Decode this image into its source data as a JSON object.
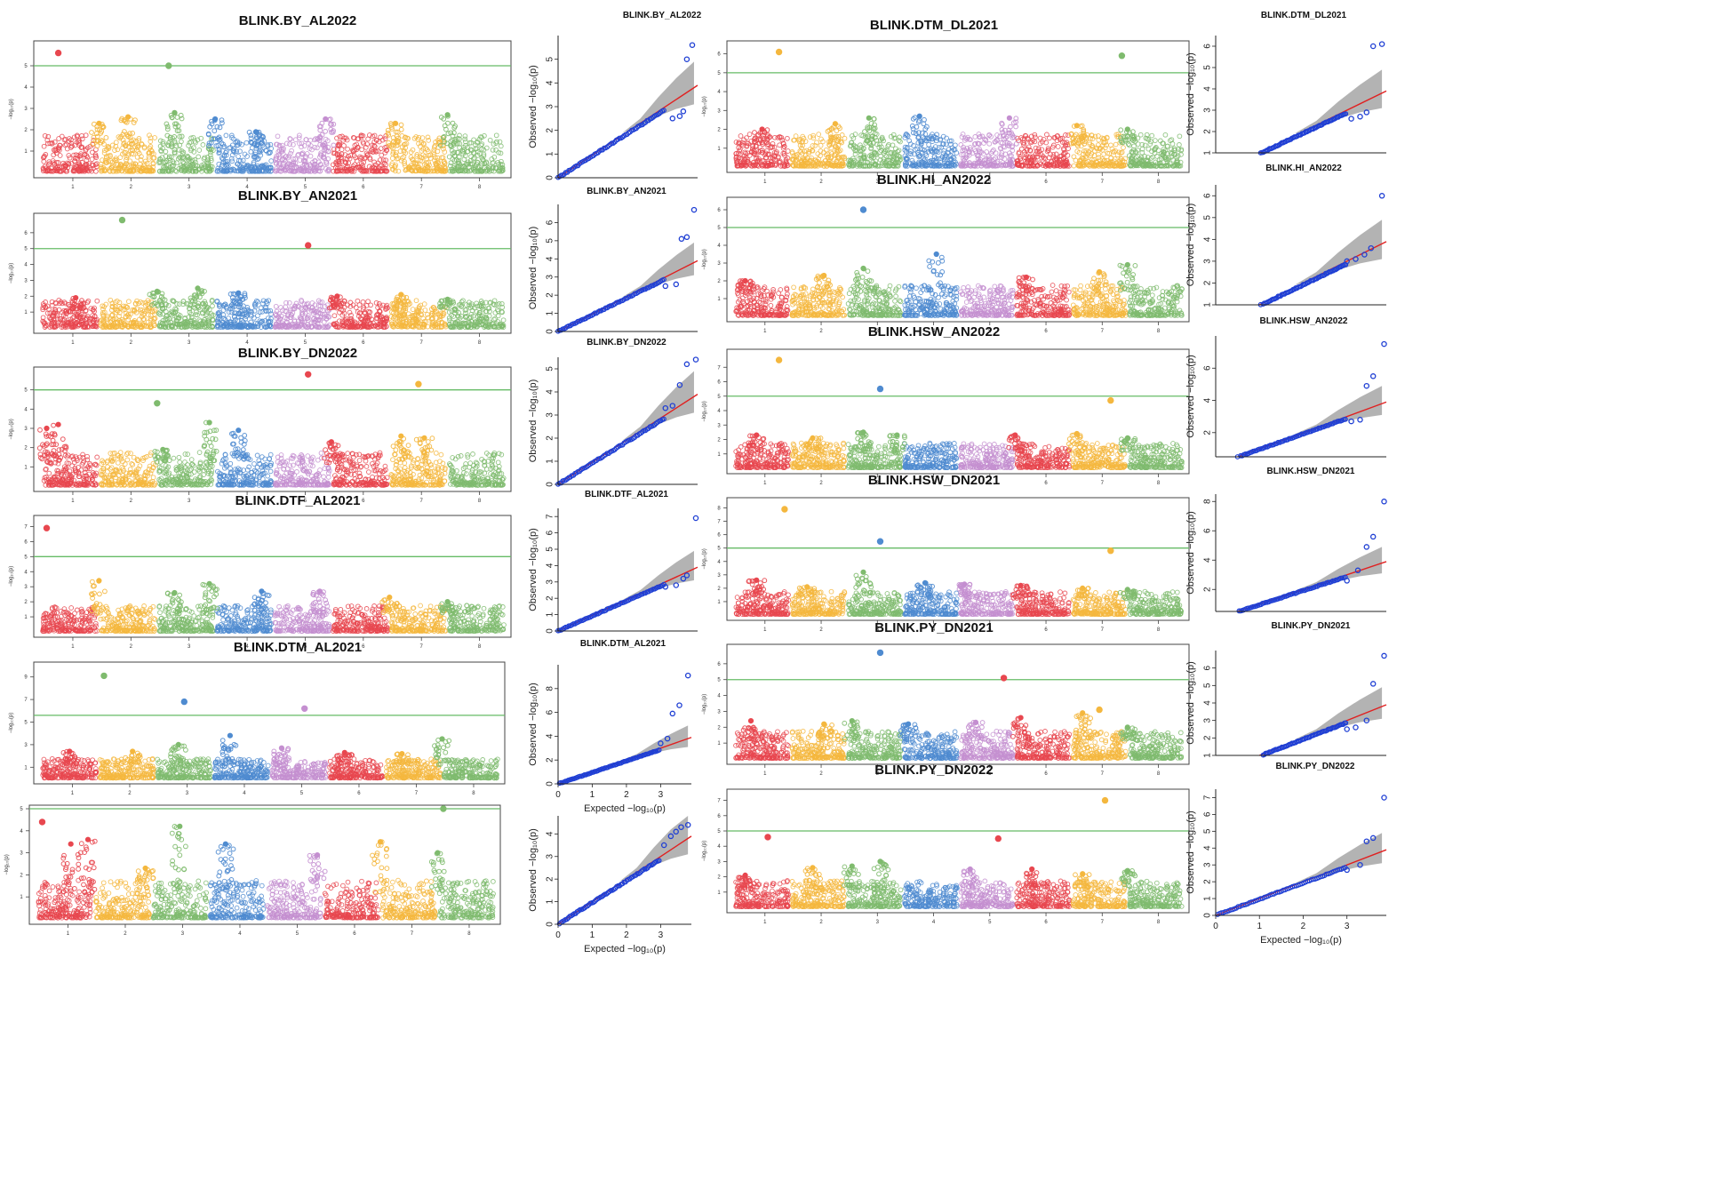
{
  "figure": {
    "chromosome_palette": [
      "#e8474f",
      "#f4b73e",
      "#7fbb6e",
      "#4f8bd0",
      "#c48fd0",
      "#e8474f",
      "#f4b73e",
      "#7fbb6e"
    ],
    "threshold_color": "#66bb66",
    "qq_point_color": "#1f3fd4",
    "qq_line_color": "#e02020",
    "qq_band_color": "#9a9a9a",
    "qq_axis": {
      "ylabel": "Observed  −log₁₀(p)",
      "xlabel": "Expected  −log₁₀(p)",
      "xticks": [
        "0",
        "1",
        "2",
        "3"
      ]
    },
    "manhattan_axis": {
      "ylabel": "−log₁₀(p)",
      "xticks": [
        "1",
        "2",
        "3",
        "4",
        "5",
        "6",
        "7",
        "8"
      ]
    }
  },
  "chart_data": [
    {
      "type": "scatter",
      "kind": "manhattan",
      "title": "BLINK.BY_AL2022",
      "ylim": [
        0,
        6
      ],
      "threshold": 5,
      "yticks": [
        "1",
        "2",
        "3",
        "4",
        "5"
      ],
      "peaks": [
        [
          2,
          2.3
        ],
        [
          2.5,
          2.6
        ],
        [
          3.3,
          2.8
        ],
        [
          4.0,
          2.5
        ],
        [
          4.7,
          1.9
        ],
        [
          5.9,
          2.5
        ],
        [
          7.1,
          2.3
        ],
        [
          8.0,
          2.7
        ]
      ],
      "significant": [
        [
          1.3,
          5.6,
          1
        ],
        [
          3.2,
          5.0,
          3
        ]
      ]
    },
    {
      "type": "scatter",
      "kind": "qq",
      "title": "BLINK.BY_AL2022",
      "ylim": [
        0,
        6
      ],
      "xlim": [
        0,
        3.9
      ],
      "yticks": [
        "0",
        "1",
        "2",
        "3",
        "4",
        "5"
      ],
      "show_xlabel": false,
      "tail": [
        [
          3.2,
          2.5
        ],
        [
          3.4,
          2.6
        ],
        [
          3.5,
          2.8
        ],
        [
          3.6,
          5.0
        ],
        [
          3.75,
          5.6
        ]
      ]
    },
    {
      "type": "scatter",
      "kind": "manhattan",
      "title": "BLINK.DTM_DL2021",
      "ylim": [
        0,
        6.5
      ],
      "threshold": 5,
      "yticks": [
        "1",
        "2",
        "3",
        "4",
        "5",
        "6"
      ],
      "peaks": [
        [
          1.5,
          2.0
        ],
        [
          2.8,
          2.3
        ],
        [
          3.4,
          2.6
        ],
        [
          4.3,
          2.7
        ],
        [
          5.9,
          2.6
        ],
        [
          7.1,
          2.2
        ],
        [
          8.0,
          2.0
        ]
      ],
      "significant": [
        [
          1.8,
          6.1,
          2
        ],
        [
          7.9,
          5.9,
          8
        ]
      ]
    },
    {
      "type": "scatter",
      "kind": "qq",
      "title": "BLINK.DTM_DL2021",
      "ylim": [
        1,
        6.5
      ],
      "xlim": [
        0,
        3.9
      ],
      "yticks": [
        "1",
        "2",
        "3",
        "4",
        "5",
        "6"
      ],
      "show_xlabel": false,
      "tail": [
        [
          3.1,
          2.6
        ],
        [
          3.3,
          2.7
        ],
        [
          3.45,
          2.9
        ],
        [
          3.6,
          6.0
        ],
        [
          3.8,
          6.1
        ]
      ]
    },
    {
      "type": "scatter",
      "kind": "manhattan",
      "title": "BLINK.BY_AN2021",
      "ylim": [
        0,
        7
      ],
      "threshold": 5,
      "yticks": [
        "1",
        "2",
        "3",
        "4",
        "5",
        "6"
      ],
      "peaks": [
        [
          1.6,
          1.9
        ],
        [
          3.0,
          2.3
        ],
        [
          3.7,
          2.5
        ],
        [
          4.4,
          2.2
        ],
        [
          6.1,
          2.0
        ],
        [
          7.2,
          2.1
        ],
        [
          8.0,
          1.8
        ]
      ],
      "significant": [
        [
          2.4,
          6.8,
          3
        ],
        [
          5.6,
          5.2,
          6
        ]
      ]
    },
    {
      "type": "scatter",
      "kind": "qq",
      "title": "BLINK.BY_AN2021",
      "ylim": [
        0,
        7
      ],
      "xlim": [
        0,
        3.9
      ],
      "yticks": [
        "0",
        "1",
        "2",
        "3",
        "4",
        "5",
        "6"
      ],
      "show_xlabel": false,
      "tail": [
        [
          3.0,
          2.5
        ],
        [
          3.3,
          2.6
        ],
        [
          3.45,
          5.1
        ],
        [
          3.6,
          5.2
        ],
        [
          3.8,
          6.7
        ]
      ]
    },
    {
      "type": "scatter",
      "kind": "manhattan",
      "title": "BLINK.HI_AN2022",
      "ylim": [
        0,
        6.5
      ],
      "threshold": 5,
      "yticks": [
        "1",
        "2",
        "3",
        "4",
        "5",
        "6"
      ],
      "peaks": [
        [
          1.2,
          2.0
        ],
        [
          2.6,
          2.3
        ],
        [
          3.3,
          2.7
        ],
        [
          4.6,
          3.5
        ],
        [
          6.2,
          2.2
        ],
        [
          7.5,
          2.5
        ],
        [
          8.0,
          2.9
        ]
      ],
      "significant": [
        [
          3.3,
          6.0,
          4
        ]
      ]
    },
    {
      "type": "scatter",
      "kind": "qq",
      "title": "BLINK.HI_AN2022",
      "ylim": [
        1,
        6.5
      ],
      "xlim": [
        0,
        3.9
      ],
      "yticks": [
        "1",
        "2",
        "3",
        "4",
        "5",
        "6"
      ],
      "show_xlabel": false,
      "tail": [
        [
          3.0,
          3.0
        ],
        [
          3.2,
          3.1
        ],
        [
          3.4,
          3.3
        ],
        [
          3.55,
          3.6
        ],
        [
          3.8,
          6.0
        ]
      ]
    },
    {
      "type": "scatter",
      "kind": "manhattan",
      "title": "BLINK.BY_DN2022",
      "ylim": [
        0,
        6
      ],
      "threshold": 5,
      "yticks": [
        "1",
        "2",
        "3",
        "4",
        "5"
      ],
      "peaks": [
        [
          1.1,
          3.0
        ],
        [
          1.3,
          3.2
        ],
        [
          3.1,
          1.9
        ],
        [
          3.9,
          3.3
        ],
        [
          4.4,
          2.9
        ],
        [
          6.0,
          2.3
        ],
        [
          7.2,
          2.6
        ],
        [
          7.6,
          2.5
        ]
      ],
      "significant": [
        [
          3.0,
          4.3,
          3
        ],
        [
          5.6,
          5.8,
          6
        ],
        [
          7.5,
          5.3,
          7
        ]
      ]
    },
    {
      "type": "scatter",
      "kind": "qq",
      "title": "BLINK.BY_DN2022",
      "ylim": [
        0,
        5.5
      ],
      "xlim": [
        0,
        3.9
      ],
      "yticks": [
        "0",
        "1",
        "2",
        "3",
        "4",
        "5"
      ],
      "show_xlabel": false,
      "tail": [
        [
          3.0,
          3.3
        ],
        [
          3.2,
          3.4
        ],
        [
          3.4,
          4.3
        ],
        [
          3.6,
          5.2
        ],
        [
          3.85,
          5.4
        ]
      ]
    },
    {
      "type": "scatter",
      "kind": "manhattan",
      "title": "BLINK.HSW_AN2022",
      "ylim": [
        0,
        8
      ],
      "threshold": 5,
      "yticks": [
        "1",
        "2",
        "3",
        "4",
        "5",
        "6",
        "7"
      ],
      "peaks": [
        [
          1.4,
          2.3
        ],
        [
          2.4,
          2.1
        ],
        [
          3.3,
          2.5
        ],
        [
          3.9,
          2.3
        ],
        [
          6.0,
          2.3
        ],
        [
          7.1,
          2.4
        ],
        [
          8.0,
          2.1
        ]
      ],
      "significant": [
        [
          1.8,
          7.5,
          2
        ],
        [
          3.6,
          5.5,
          4
        ],
        [
          7.7,
          4.7,
          7
        ]
      ]
    },
    {
      "type": "scatter",
      "kind": "qq",
      "title": "BLINK.HSW_AN2022",
      "ylim": [
        0.5,
        8
      ],
      "xlim": [
        0,
        3.9
      ],
      "yticks": [
        "2",
        "4",
        "6"
      ],
      "show_xlabel": false,
      "tail": [
        [
          3.1,
          2.7
        ],
        [
          3.3,
          2.8
        ],
        [
          3.45,
          4.9
        ],
        [
          3.6,
          5.5
        ],
        [
          3.85,
          7.5
        ]
      ]
    },
    {
      "type": "scatter",
      "kind": "manhattan",
      "title": "BLINK.DTF_AL2021",
      "ylim": [
        0,
        7.5
      ],
      "threshold": 5,
      "yticks": [
        "1",
        "2",
        "3",
        "4",
        "5",
        "6",
        "7"
      ],
      "peaks": [
        [
          2.0,
          3.4
        ],
        [
          3.3,
          2.6
        ],
        [
          3.9,
          3.2
        ],
        [
          4.8,
          2.7
        ],
        [
          5.8,
          2.7
        ],
        [
          7.0,
          2.3
        ],
        [
          8.0,
          2.0
        ]
      ],
      "significant": [
        [
          1.1,
          6.9,
          1
        ]
      ]
    },
    {
      "type": "scatter",
      "kind": "qq",
      "title": "BLINK.DTF_AL2021",
      "ylim": [
        0,
        7.5
      ],
      "xlim": [
        0,
        3.9
      ],
      "yticks": [
        "0",
        "1",
        "2",
        "3",
        "4",
        "5",
        "6",
        "7"
      ],
      "show_xlabel": false,
      "tail": [
        [
          3.0,
          2.7
        ],
        [
          3.3,
          2.8
        ],
        [
          3.5,
          3.2
        ],
        [
          3.6,
          3.4
        ],
        [
          3.85,
          6.9
        ]
      ]
    },
    {
      "type": "scatter",
      "kind": "manhattan",
      "title": "BLINK.HSW_DN2021",
      "ylim": [
        0,
        8.5
      ],
      "threshold": 5,
      "yticks": [
        "1",
        "2",
        "3",
        "4",
        "5",
        "6",
        "7",
        "8"
      ],
      "peaks": [
        [
          1.4,
          2.6
        ],
        [
          2.3,
          2.1
        ],
        [
          3.3,
          3.2
        ],
        [
          4.4,
          2.4
        ],
        [
          5.1,
          2.3
        ],
        [
          6.1,
          2.2
        ],
        [
          7.2,
          2.0
        ],
        [
          8.0,
          1.9
        ]
      ],
      "significant": [
        [
          1.9,
          7.9,
          2
        ],
        [
          3.6,
          5.5,
          4
        ],
        [
          7.7,
          4.8,
          7
        ]
      ]
    },
    {
      "type": "scatter",
      "kind": "qq",
      "title": "BLINK.HSW_DN2021",
      "ylim": [
        0.5,
        8.5
      ],
      "xlim": [
        0,
        3.9
      ],
      "yticks": [
        "2",
        "4",
        "6",
        "8"
      ],
      "show_xlabel": false,
      "tail": [
        [
          3.0,
          2.6
        ],
        [
          3.25,
          3.3
        ],
        [
          3.45,
          4.9
        ],
        [
          3.6,
          5.6
        ],
        [
          3.85,
          8.0
        ]
      ]
    },
    {
      "type": "scatter",
      "kind": "manhattan",
      "title": "BLINK.DTM_AL2021",
      "ylim": [
        0,
        10
      ],
      "threshold": 5.6,
      "yticks": [
        "1",
        "3",
        "5",
        "7",
        "9"
      ],
      "peaks": [
        [
          1.5,
          2.4
        ],
        [
          2.6,
          2.4
        ],
        [
          3.4,
          3.0
        ],
        [
          4.3,
          3.8
        ],
        [
          5.2,
          2.7
        ],
        [
          6.3,
          2.3
        ],
        [
          7.3,
          2.2
        ],
        [
          8.0,
          3.5
        ]
      ],
      "significant": [
        [
          2.1,
          9.1,
          3
        ],
        [
          3.5,
          6.8,
          4
        ],
        [
          5.6,
          6.2,
          5
        ]
      ]
    },
    {
      "type": "scatter",
      "kind": "qq",
      "title": "BLINK.DTM_AL2021",
      "ylim": [
        0,
        10
      ],
      "xlim": [
        0,
        3.9
      ],
      "yticks": [
        "0",
        "2",
        "4",
        "6",
        "8"
      ],
      "show_xlabel": true,
      "tail": [
        [
          3.0,
          3.4
        ],
        [
          3.2,
          3.8
        ],
        [
          3.35,
          5.9
        ],
        [
          3.55,
          6.6
        ],
        [
          3.8,
          9.1
        ]
      ]
    },
    {
      "type": "scatter",
      "kind": "manhattan",
      "title": "BLINK.PY_DN2021",
      "ylim": [
        0,
        7
      ],
      "threshold": 5,
      "yticks": [
        "1",
        "2",
        "3",
        "4",
        "5",
        "6"
      ],
      "peaks": [
        [
          1.3,
          2.4
        ],
        [
          2.6,
          2.2
        ],
        [
          3.1,
          2.4
        ],
        [
          4.1,
          2.2
        ],
        [
          5.3,
          2.3
        ],
        [
          6.1,
          2.6
        ],
        [
          7.2,
          2.9
        ],
        [
          8.0,
          2.0
        ]
      ],
      "significant": [
        [
          3.6,
          6.7,
          4
        ],
        [
          5.8,
          5.1,
          6
        ],
        [
          7.5,
          3.1,
          7
        ]
      ]
    },
    {
      "type": "scatter",
      "kind": "qq",
      "title": "BLINK.PY_DN2021",
      "ylim": [
        1,
        7
      ],
      "xlim": [
        0,
        3.9
      ],
      "yticks": [
        "1",
        "2",
        "3",
        "4",
        "5",
        "6"
      ],
      "show_xlabel": false,
      "tail": [
        [
          3.0,
          2.5
        ],
        [
          3.2,
          2.6
        ],
        [
          3.45,
          3.0
        ],
        [
          3.6,
          5.1
        ],
        [
          3.85,
          6.7
        ]
      ]
    },
    {
      "type": "scatter",
      "kind": "manhattan",
      "title": "",
      "ylim": [
        0,
        5
      ],
      "threshold": 5,
      "yticks": [
        "1",
        "2",
        "3",
        "4",
        "5"
      ],
      "peaks": [
        [
          1.6,
          3.4
        ],
        [
          1.9,
          3.6
        ],
        [
          2.9,
          2.3
        ],
        [
          3.5,
          4.2
        ],
        [
          4.3,
          3.4
        ],
        [
          5.9,
          2.9
        ],
        [
          7.0,
          3.5
        ],
        [
          8.0,
          3.0
        ]
      ],
      "significant": [
        [
          1.1,
          4.4,
          1
        ],
        [
          8.1,
          5.0,
          8
        ]
      ]
    },
    {
      "type": "scatter",
      "kind": "qq",
      "title": "",
      "ylim": [
        0,
        4.8
      ],
      "xlim": [
        0,
        3.9
      ],
      "yticks": [
        "0",
        "1",
        "2",
        "3",
        "4"
      ],
      "show_xlabel": true,
      "tail": [
        [
          3.1,
          3.5
        ],
        [
          3.3,
          3.9
        ],
        [
          3.45,
          4.1
        ],
        [
          3.6,
          4.3
        ],
        [
          3.8,
          4.4
        ]
      ]
    },
    {
      "type": "scatter",
      "kind": "manhattan",
      "title": "BLINK.PY_DN2022",
      "ylim": [
        0,
        7.5
      ],
      "threshold": 5,
      "yticks": [
        "1",
        "2",
        "3",
        "4",
        "5",
        "6",
        "7"
      ],
      "peaks": [
        [
          1.2,
          2.1
        ],
        [
          2.4,
          2.6
        ],
        [
          3.1,
          2.7
        ],
        [
          3.6,
          3.0
        ],
        [
          5.2,
          2.5
        ],
        [
          6.3,
          2.5
        ],
        [
          7.2,
          2.2
        ],
        [
          8.0,
          2.4
        ]
      ],
      "significant": [
        [
          1.6,
          4.6,
          1
        ],
        [
          5.7,
          4.5,
          6
        ],
        [
          7.6,
          7.0,
          7
        ]
      ]
    },
    {
      "type": "scatter",
      "kind": "qq",
      "title": "BLINK.PY_DN2022",
      "ylim": [
        0,
        7.5
      ],
      "xlim": [
        0,
        3.9
      ],
      "yticks": [
        "0",
        "1",
        "2",
        "3",
        "4",
        "5",
        "6",
        "7"
      ],
      "show_xlabel": true,
      "tail": [
        [
          3.0,
          2.7
        ],
        [
          3.3,
          3.0
        ],
        [
          3.45,
          4.4
        ],
        [
          3.6,
          4.6
        ],
        [
          3.85,
          7.0
        ]
      ]
    }
  ]
}
